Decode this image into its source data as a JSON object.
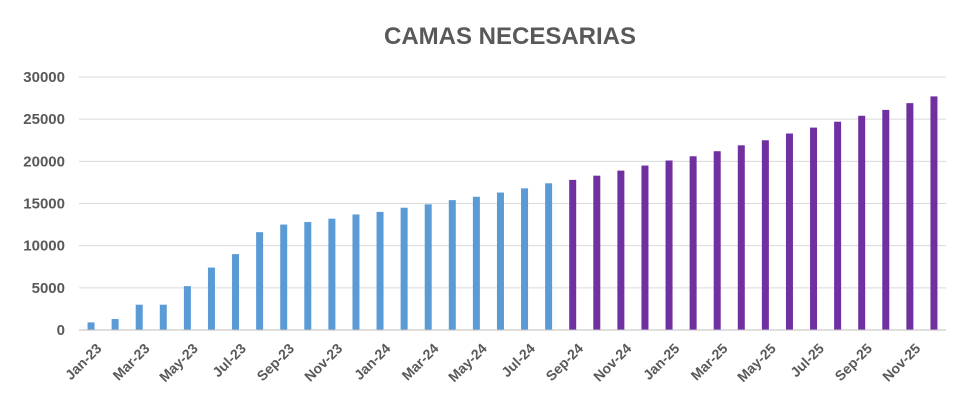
{
  "chart_data": {
    "type": "bar",
    "title": "CAMAS NECESARIAS",
    "xlabel": "",
    "ylabel": "",
    "ylim": [
      0,
      30000
    ],
    "yticks": [
      0,
      5000,
      10000,
      15000,
      20000,
      25000,
      30000
    ],
    "grid": true,
    "legend": "none",
    "categories": [
      "Jan-23",
      "Feb-23",
      "Mar-23",
      "Apr-23",
      "May-23",
      "Jun-23",
      "Jul-23",
      "Aug-23",
      "Sep-23",
      "Oct-23",
      "Nov-23",
      "Dec-23",
      "Jan-24",
      "Feb-24",
      "Mar-24",
      "Apr-24",
      "May-24",
      "Jun-24",
      "Jul-24",
      "Aug-24",
      "Sep-24",
      "Oct-24",
      "Nov-24",
      "Dec-24",
      "Jan-25",
      "Feb-25",
      "Mar-25",
      "Apr-25",
      "May-25",
      "Jun-25",
      "Jul-25",
      "Aug-25",
      "Sep-25",
      "Oct-25",
      "Nov-25",
      "Dec-25"
    ],
    "tick_labels": [
      "Jan-23",
      "",
      "Mar-23",
      "",
      "May-23",
      "",
      "Jul-23",
      "",
      "Sep-23",
      "",
      "Nov-23",
      "",
      "Jan-24",
      "",
      "Mar-24",
      "",
      "May-24",
      "",
      "Jul-24",
      "",
      "Sep-24",
      "",
      "Nov-24",
      "",
      "Jan-25",
      "",
      "Mar-25",
      "",
      "May-25",
      "",
      "Jul-25",
      "",
      "Sep-25",
      "",
      "Nov-25",
      ""
    ],
    "values": [
      900,
      1300,
      3000,
      3000,
      5200,
      7400,
      9000,
      11600,
      12500,
      12800,
      13200,
      13700,
      14000,
      14500,
      14900,
      15400,
      15800,
      16300,
      16800,
      17400,
      17800,
      18300,
      18900,
      19500,
      20100,
      20600,
      21200,
      21900,
      22500,
      23300,
      24000,
      24700,
      25400,
      26100,
      26900,
      27700
    ],
    "colors": {
      "actual": "#5b9bd5",
      "projected": "#7030a0"
    },
    "actual_count": 20
  }
}
